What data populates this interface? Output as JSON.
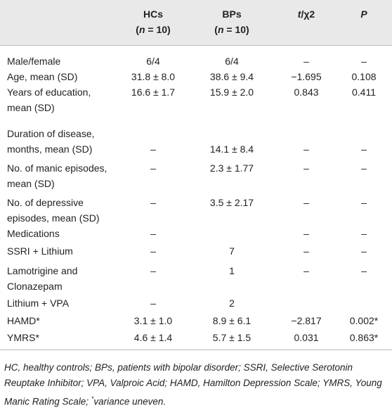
{
  "table": {
    "header": [
      {
        "lines": [
          "HCs"
        ],
        "sub": [
          "(",
          "n",
          " = 10)"
        ]
      },
      {
        "lines": [
          "BPs"
        ],
        "sub": [
          "(",
          "n",
          " = 10)"
        ]
      },
      {
        "lines": [],
        "sub": [
          "t",
          "/χ2"
        ]
      },
      {
        "lines": [],
        "sub": [
          "P"
        ]
      }
    ],
    "rows": [
      {
        "label": [
          "Male/female"
        ],
        "cells": [
          "6/4",
          "6/4",
          "–",
          "–"
        ]
      },
      {
        "label": [
          "Age, mean (SD)"
        ],
        "cells": [
          "31.8 ± 8.0",
          "38.6 ± 9.4",
          "−1.695",
          "0.108"
        ]
      },
      {
        "label": [
          "Years of education,",
          "mean (SD)"
        ],
        "cells": [
          "16.6 ± 1.7",
          "15.9 ± 2.0",
          "0.843",
          "0.411"
        ]
      },
      {
        "label": [
          "Duration of disease,",
          "months, mean (SD)"
        ],
        "cells": [
          "–",
          "14.1 ± 8.4",
          "–",
          "–"
        ]
      },
      {
        "label": [
          "No. of manic episodes,",
          "mean (SD)"
        ],
        "cells": [
          "–",
          "2.3 ± 1.77",
          "–",
          "–"
        ]
      },
      {
        "label": [
          "No. of depressive",
          "episodes, mean (SD)"
        ],
        "cells": [
          "–",
          "3.5 ± 2.17",
          "–",
          "–"
        ]
      },
      {
        "label": [
          "Medications"
        ],
        "cells": [
          "–",
          null,
          "–",
          "–"
        ]
      },
      {
        "label": [
          "SSRI + Lithium"
        ],
        "cells": [
          "–",
          "7",
          "–",
          "–"
        ]
      },
      {
        "label": [
          "Lamotrigine and",
          "Clonazepam"
        ],
        "cells": [
          "–",
          "1",
          "–",
          "–"
        ]
      },
      {
        "label": [
          "Lithium + VPA"
        ],
        "cells": [
          "–",
          "2",
          null,
          null
        ]
      },
      {
        "label": [
          "HAMD*"
        ],
        "cells": [
          "3.1 ± 1.0",
          "8.9 ± 6.1",
          "−2.817",
          "0.002*"
        ]
      },
      {
        "label": [
          "YMRS*"
        ],
        "cells": [
          "4.6 ± 1.4",
          "5.7 ± 1.5",
          "0.031",
          "0.863*"
        ]
      }
    ],
    "footnote": [
      "HC, healthy controls; BPs, patients with bipolar disorder; SSRI, Selective Serotonin Reuptake Inhibitor; VPA, Valproic Acid; HAMD, Hamilton Depression Scale; YMRS, Young Manic Rating Scale; ",
      "*",
      "variance uneven."
    ]
  }
}
